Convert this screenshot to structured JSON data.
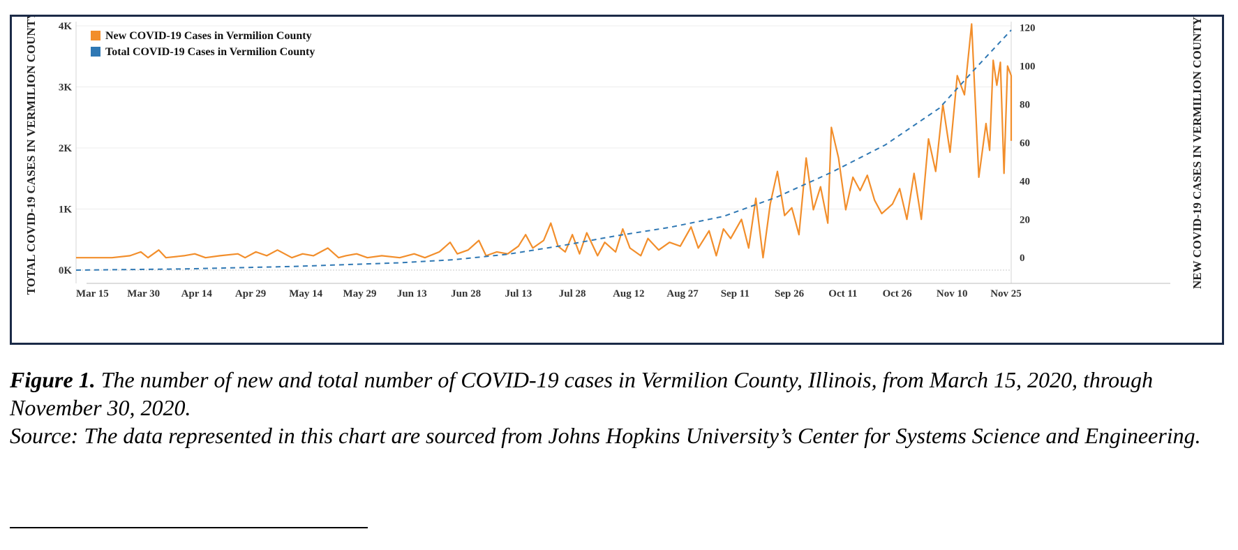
{
  "caption": {
    "figure_label": "Figure 1.",
    "figure_text": "The number of new and total number of COVID-19 cases in Vermilion County, Illinois, from March 15, 2020, through November 30, 2020.",
    "source_text": "Source: The data represented in this chart are sourced from Johns Hopkins University’s Center for Systems Science and Engineering."
  },
  "colors": {
    "new_cases": "#f28e2b",
    "total_cases": "#2f78b4",
    "frame": "#1b2a47"
  },
  "chart_data": {
    "type": "line",
    "title": "",
    "xlabel": "",
    "ylabel_left": "TOTAL COVID-19 CASES IN VERMILION COUNTY",
    "ylabel_right": "NEW COVID-19 CASES IN VERMILION COUNTY",
    "x_start": "2020-03-15",
    "x_end": "2020-11-30",
    "x_tick_labels": [
      "Mar 15",
      "Mar 30",
      "Apr 14",
      "Apr 29",
      "May 14",
      "May 29",
      "Jun 13",
      "Jun 28",
      "Jul 13",
      "Jul 28",
      "Aug 12",
      "Aug 27",
      "Sep 11",
      "Sep 26",
      "Oct 11",
      "Oct 26",
      "Nov 10",
      "Nov 25"
    ],
    "y_left": {
      "lim": [
        0,
        4000
      ],
      "ticks": [
        0,
        1000,
        2000,
        3000,
        4000
      ],
      "tick_labels": [
        "0K",
        "1K",
        "2K",
        "3K",
        "4K"
      ]
    },
    "y_right": {
      "lim": [
        -6.5,
        121
      ],
      "ticks": [
        0,
        20,
        40,
        60,
        80,
        100,
        120
      ],
      "tick_labels": [
        "0",
        "20",
        "40",
        "60",
        "80",
        "100",
        "120"
      ]
    },
    "grid": true,
    "legend_position": "top-left",
    "series": [
      {
        "name": "New COVID-19 Cases in Vermilion County",
        "axis": "right",
        "style": "solid",
        "points": [
          [
            "2020-03-15",
            0
          ],
          [
            "2020-03-20",
            0
          ],
          [
            "2020-03-25",
            0
          ],
          [
            "2020-03-30",
            1
          ],
          [
            "2020-04-02",
            3
          ],
          [
            "2020-04-04",
            0
          ],
          [
            "2020-04-07",
            4
          ],
          [
            "2020-04-09",
            0
          ],
          [
            "2020-04-14",
            1
          ],
          [
            "2020-04-17",
            2
          ],
          [
            "2020-04-20",
            0
          ],
          [
            "2020-04-24",
            1
          ],
          [
            "2020-04-29",
            2
          ],
          [
            "2020-05-01",
            0
          ],
          [
            "2020-05-04",
            3
          ],
          [
            "2020-05-07",
            1
          ],
          [
            "2020-05-10",
            4
          ],
          [
            "2020-05-14",
            0
          ],
          [
            "2020-05-17",
            2
          ],
          [
            "2020-05-20",
            1
          ],
          [
            "2020-05-24",
            5
          ],
          [
            "2020-05-27",
            0
          ],
          [
            "2020-05-29",
            1
          ],
          [
            "2020-06-01",
            2
          ],
          [
            "2020-06-04",
            0
          ],
          [
            "2020-06-08",
            1
          ],
          [
            "2020-06-13",
            0
          ],
          [
            "2020-06-17",
            2
          ],
          [
            "2020-06-20",
            0
          ],
          [
            "2020-06-24",
            3
          ],
          [
            "2020-06-27",
            8
          ],
          [
            "2020-06-29",
            2
          ],
          [
            "2020-07-02",
            4
          ],
          [
            "2020-07-05",
            9
          ],
          [
            "2020-07-07",
            1
          ],
          [
            "2020-07-10",
            3
          ],
          [
            "2020-07-13",
            2
          ],
          [
            "2020-07-16",
            6
          ],
          [
            "2020-07-18",
            12
          ],
          [
            "2020-07-20",
            5
          ],
          [
            "2020-07-23",
            9
          ],
          [
            "2020-07-25",
            18
          ],
          [
            "2020-07-27",
            6
          ],
          [
            "2020-07-29",
            3
          ],
          [
            "2020-07-31",
            12
          ],
          [
            "2020-08-02",
            2
          ],
          [
            "2020-08-04",
            13
          ],
          [
            "2020-08-07",
            1
          ],
          [
            "2020-08-09",
            8
          ],
          [
            "2020-08-12",
            3
          ],
          [
            "2020-08-14",
            15
          ],
          [
            "2020-08-16",
            5
          ],
          [
            "2020-08-19",
            1
          ],
          [
            "2020-08-21",
            10
          ],
          [
            "2020-08-24",
            4
          ],
          [
            "2020-08-27",
            8
          ],
          [
            "2020-08-30",
            6
          ],
          [
            "2020-09-02",
            16
          ],
          [
            "2020-09-04",
            5
          ],
          [
            "2020-09-07",
            14
          ],
          [
            "2020-09-09",
            1
          ],
          [
            "2020-09-11",
            15
          ],
          [
            "2020-09-13",
            10
          ],
          [
            "2020-09-16",
            20
          ],
          [
            "2020-09-18",
            5
          ],
          [
            "2020-09-20",
            31
          ],
          [
            "2020-09-22",
            0
          ],
          [
            "2020-09-24",
            28
          ],
          [
            "2020-09-26",
            45
          ],
          [
            "2020-09-28",
            22
          ],
          [
            "2020-09-30",
            26
          ],
          [
            "2020-10-02",
            12
          ],
          [
            "2020-10-04",
            52
          ],
          [
            "2020-10-06",
            25
          ],
          [
            "2020-10-08",
            37
          ],
          [
            "2020-10-10",
            18
          ],
          [
            "2020-10-11",
            68
          ],
          [
            "2020-10-13",
            52
          ],
          [
            "2020-10-15",
            25
          ],
          [
            "2020-10-17",
            42
          ],
          [
            "2020-10-19",
            35
          ],
          [
            "2020-10-21",
            43
          ],
          [
            "2020-10-23",
            30
          ],
          [
            "2020-10-25",
            23
          ],
          [
            "2020-10-28",
            28
          ],
          [
            "2020-10-30",
            36
          ],
          [
            "2020-11-01",
            20
          ],
          [
            "2020-11-03",
            44
          ],
          [
            "2020-11-05",
            20
          ],
          [
            "2020-11-07",
            62
          ],
          [
            "2020-11-09",
            45
          ],
          [
            "2020-11-11",
            80
          ],
          [
            "2020-11-13",
            55
          ],
          [
            "2020-11-15",
            95
          ],
          [
            "2020-11-17",
            85
          ],
          [
            "2020-11-19",
            122
          ],
          [
            "2020-11-21",
            42
          ],
          [
            "2020-11-22",
            56
          ],
          [
            "2020-11-23",
            70
          ],
          [
            "2020-11-24",
            56
          ],
          [
            "2020-11-25",
            103
          ],
          [
            "2020-11-26",
            90
          ],
          [
            "2020-11-27",
            102
          ],
          [
            "2020-11-28",
            44
          ],
          [
            "2020-11-29",
            100
          ],
          [
            "2020-11-30",
            95
          ],
          [
            "2020-11-30",
            61
          ]
        ]
      },
      {
        "name": "Total COVID-19 Cases in Vermilion County",
        "axis": "left",
        "style": "dashed",
        "points": [
          [
            "2020-03-15",
            0
          ],
          [
            "2020-04-14",
            20
          ],
          [
            "2020-05-14",
            60
          ],
          [
            "2020-06-13",
            120
          ],
          [
            "2020-06-28",
            170
          ],
          [
            "2020-07-13",
            260
          ],
          [
            "2020-07-28",
            400
          ],
          [
            "2020-08-12",
            560
          ],
          [
            "2020-08-27",
            700
          ],
          [
            "2020-09-11",
            880
          ],
          [
            "2020-09-26",
            1200
          ],
          [
            "2020-10-11",
            1600
          ],
          [
            "2020-10-26",
            2050
          ],
          [
            "2020-11-10",
            2650
          ],
          [
            "2020-11-20",
            3300
          ],
          [
            "2020-11-30",
            3930
          ]
        ]
      }
    ]
  }
}
